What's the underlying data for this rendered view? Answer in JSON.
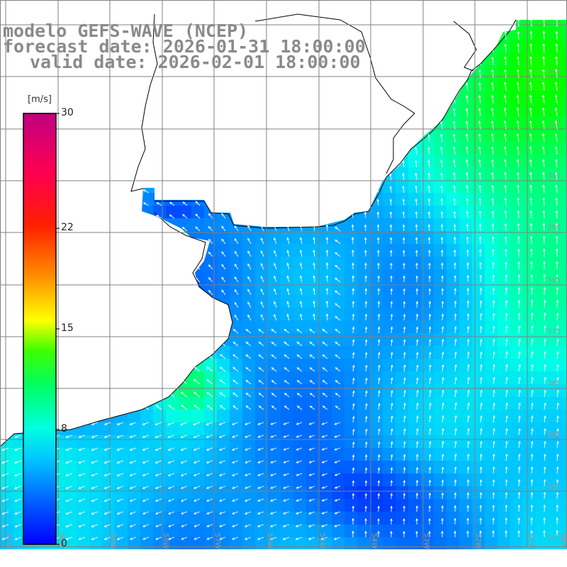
{
  "title": {
    "model": "modelo GEFS-WAVE (NCEP)",
    "forecast": "forecast date: 2026-01-31 18:00:00",
    "valid": "valid date: 2026-02-01 18:00:00"
  },
  "colorbar": {
    "unit": "[m/s]",
    "ticks": [
      "30",
      "22",
      "15",
      "8",
      "0"
    ],
    "tick_values": [
      30,
      22,
      15,
      8,
      0
    ],
    "colors": [
      "#0000ff",
      "#0090ff",
      "#00e0ff",
      "#00ff80",
      "#00ff00",
      "#80ff00",
      "#ffff00",
      "#ff9000",
      "#ff2000",
      "#ff0040",
      "#c00080"
    ]
  },
  "axes": {
    "lon_labels": [
      "61W",
      "60W",
      "59W",
      "58W",
      "57W",
      "56W",
      "55W",
      "54W",
      "53W",
      "52W",
      "51W",
      "50W"
    ],
    "lat_labels": [
      "32S",
      "33S",
      "34S",
      "35S",
      "36S",
      "37S",
      "38S",
      "39S",
      "40S",
      "41S"
    ]
  },
  "colors": {
    "land": "#ffffff",
    "coast": "#000000",
    "grid": "#808080",
    "arrow": "#ffffff",
    "text": "#8a8a8a"
  },
  "chart_data": {
    "type": "heatmap",
    "field": "wind speed",
    "units": "m/s",
    "value_range": [
      0,
      30
    ]
  }
}
